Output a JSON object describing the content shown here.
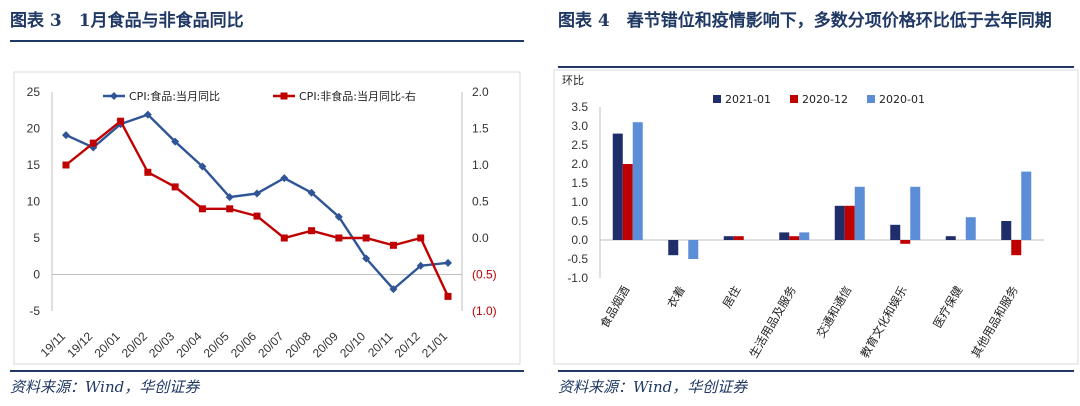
{
  "left": {
    "title": "图表 3　1月食品与非食品同比",
    "source": "资料来源：Wind，华创证券",
    "chart_data": {
      "type": "line",
      "categories": [
        "19/11",
        "19/12",
        "20/01",
        "20/02",
        "20/03",
        "20/04",
        "20/05",
        "20/06",
        "20/07",
        "20/08",
        "20/09",
        "20/10",
        "20/11",
        "20/12",
        "21/01"
      ],
      "series": [
        {
          "name": "CPI:食品:当月同比",
          "axis": "left",
          "color": "#2f5597",
          "values": [
            19.1,
            17.4,
            20.6,
            21.9,
            18.2,
            14.8,
            10.6,
            11.1,
            13.2,
            11.2,
            7.9,
            2.2,
            -2.0,
            1.2,
            1.6
          ]
        },
        {
          "name": "CPI:非食品:当月同比-右",
          "axis": "right",
          "color": "#c00000",
          "values": [
            1.0,
            1.3,
            1.6,
            0.9,
            0.7,
            0.4,
            0.4,
            0.3,
            0.0,
            0.1,
            0.0,
            0.0,
            -0.1,
            0.0,
            -0.8
          ]
        }
      ],
      "y_left": {
        "min": -5,
        "max": 25,
        "ticks": [
          "-5",
          "0",
          "5",
          "10",
          "15",
          "20",
          "25"
        ]
      },
      "y_right": {
        "min": -1.0,
        "max": 2.0,
        "ticks": [
          "(1.0)",
          "(0.5)",
          "0.0",
          "0.5",
          "1.0",
          "1.5",
          "2.0"
        ]
      },
      "legend": "top"
    }
  },
  "right": {
    "title": "图表 4　春节错位和疫情影响下，多数分项价格环比低于去年同期",
    "source": "资料来源：Wind，华创证券",
    "chart_data": {
      "type": "bar",
      "ylabel": "环比",
      "categories": [
        "食品烟酒",
        "衣着",
        "居住",
        "生活用品及服务",
        "交通和通信",
        "教育文化和娱乐",
        "医疗保健",
        "其他用品和服务"
      ],
      "series": [
        {
          "name": "2021-01",
          "color": "#1f2d6b",
          "values": [
            2.8,
            -0.4,
            0.1,
            0.2,
            0.9,
            0.4,
            0.1,
            0.5
          ]
        },
        {
          "name": "2020-12",
          "color": "#c00000",
          "values": [
            2.0,
            0.0,
            0.1,
            0.1,
            0.9,
            -0.1,
            0.0,
            -0.4
          ]
        },
        {
          "name": "2020-01",
          "color": "#5b8ed6",
          "values": [
            3.1,
            -0.5,
            0.0,
            0.2,
            1.4,
            1.4,
            0.6,
            1.8
          ]
        }
      ],
      "y": {
        "min": -1.0,
        "max": 3.5,
        "ticks": [
          "-1.0",
          "-0.5",
          "0.0",
          "0.5",
          "1.0",
          "1.5",
          "2.0",
          "2.5",
          "3.0",
          "3.5"
        ]
      },
      "legend": "top"
    }
  }
}
